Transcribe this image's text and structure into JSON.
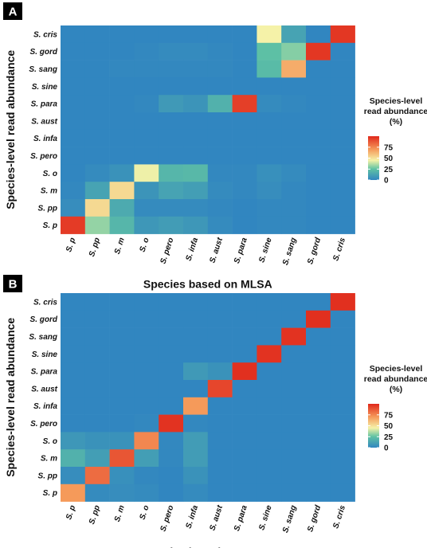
{
  "chart_data": [
    {
      "type": "heatmap",
      "panel_label": "A",
      "xlabel": "Species based on MLSA",
      "ylabel": "Species-level read abundance",
      "x_categories": [
        "S. p",
        "S. pp",
        "S. m",
        "S. o",
        "S. pero",
        "S. infa",
        "S. aust",
        "S. para",
        "S. sine",
        "S. sang",
        "S. gord",
        "S. cris"
      ],
      "y_categories_top_to_bottom": [
        "S. cris",
        "S. gord",
        "S. sang",
        "S. sine",
        "S. para",
        "S. aust",
        "S. infa",
        "S. pero",
        "S. o",
        "S. m",
        "S. pp",
        "S. p"
      ],
      "values": [
        [
          0,
          0,
          0,
          0,
          0,
          0,
          0,
          0,
          45,
          12,
          0,
          96
        ],
        [
          0,
          0,
          0,
          1,
          2,
          2,
          1,
          0,
          24,
          30,
          96,
          0
        ],
        [
          0,
          0,
          1,
          1,
          1,
          1,
          1,
          0,
          22,
          65,
          0,
          0
        ],
        [
          0,
          0,
          0,
          0,
          0,
          0,
          0,
          0,
          0,
          0,
          0,
          0
        ],
        [
          0,
          0,
          0,
          1,
          8,
          6,
          18,
          94,
          2,
          1,
          0,
          0
        ],
        [
          0,
          0,
          0,
          0,
          0,
          0,
          0,
          0,
          0,
          0,
          0,
          0
        ],
        [
          0,
          0,
          0,
          0,
          0,
          0,
          0,
          0,
          0,
          0,
          0,
          0
        ],
        [
          0,
          0,
          0,
          0,
          0,
          0,
          0,
          0,
          0,
          0,
          0,
          0
        ],
        [
          0,
          2,
          5,
          44,
          20,
          21,
          1,
          1,
          4,
          2,
          0,
          0
        ],
        [
          1,
          12,
          52,
          6,
          12,
          10,
          2,
          1,
          3,
          1,
          0,
          0
        ],
        [
          3,
          52,
          15,
          2,
          2,
          2,
          1,
          0,
          1,
          1,
          0,
          0
        ],
        [
          95,
          32,
          20,
          7,
          9,
          7,
          2,
          0,
          1,
          1,
          0,
          0
        ]
      ],
      "legend": {
        "title_lines": [
          "Species-level",
          "read abundance",
          "(%)"
        ],
        "ticks": [
          75,
          50,
          25,
          0
        ],
        "placement": "right"
      },
      "colorscale": {
        "low": "#3186c0",
        "high": "#e0281b",
        "range": [
          0,
          100
        ]
      }
    },
    {
      "type": "heatmap",
      "panel_label": "B",
      "xlabel": "Species based on MLSA",
      "ylabel": "Species-level read abundance",
      "x_categories": [
        "S. p",
        "S. pp",
        "S. m",
        "S. o",
        "S. pero",
        "S. infa",
        "S. aust",
        "S. para",
        "S. sine",
        "S. sang",
        "S. gord",
        "S. cris"
      ],
      "y_categories_top_to_bottom": [
        "S. cris",
        "S. gord",
        "S. sang",
        "S. sine",
        "S. para",
        "S. aust",
        "S. infa",
        "S. pero",
        "S. o",
        "S. m",
        "S. pp",
        "S. p"
      ],
      "values": [
        [
          0,
          0,
          0,
          0,
          0,
          0,
          0,
          0,
          0,
          0,
          0,
          98
        ],
        [
          0,
          0,
          0,
          0,
          0,
          0,
          0,
          0,
          0,
          0,
          98,
          0
        ],
        [
          0,
          0,
          0,
          0,
          0,
          0,
          0,
          0,
          0,
          97,
          0,
          0
        ],
        [
          0,
          0,
          0,
          0,
          0,
          0,
          0,
          0,
          97,
          0,
          0,
          0
        ],
        [
          0,
          0,
          0,
          0,
          0,
          8,
          5,
          98,
          0,
          0,
          0,
          0
        ],
        [
          0,
          0,
          0,
          0,
          0,
          0,
          92,
          0,
          0,
          0,
          0,
          0
        ],
        [
          0,
          0,
          0,
          0,
          0,
          70,
          0,
          0,
          0,
          0,
          0,
          0
        ],
        [
          0,
          0,
          0,
          1,
          97,
          1,
          0,
          0,
          0,
          0,
          0,
          0
        ],
        [
          7,
          5,
          5,
          75,
          1,
          9,
          0,
          0,
          0,
          0,
          0,
          0
        ],
        [
          18,
          10,
          88,
          10,
          1,
          9,
          0,
          0,
          0,
          0,
          0,
          0
        ],
        [
          3,
          82,
          4,
          1,
          0,
          5,
          0,
          0,
          0,
          0,
          0,
          0
        ],
        [
          70,
          2,
          3,
          2,
          0,
          2,
          0,
          0,
          0,
          0,
          0,
          0
        ]
      ],
      "legend": {
        "title_lines": [
          "Species-level",
          "read abundance",
          "(%)"
        ],
        "ticks": [
          75,
          50,
          25,
          0
        ],
        "placement": "right"
      },
      "colorscale": {
        "low": "#3186c0",
        "high": "#e0281b",
        "range": [
          0,
          100
        ]
      }
    }
  ]
}
